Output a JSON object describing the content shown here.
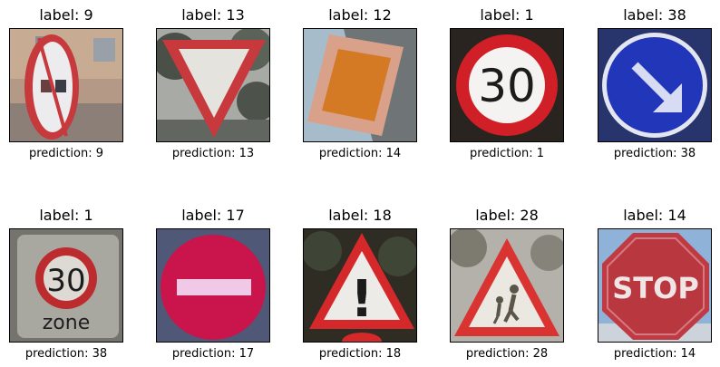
{
  "chart_data": {
    "type": "image-grid",
    "rows": 2,
    "cols": 5,
    "items": [
      {
        "label_text": "label: 9",
        "prediction_text": "prediction: 9",
        "label": 9,
        "prediction": 9,
        "icon": "no-overtaking-trucks-sign"
      },
      {
        "label_text": "label: 13",
        "prediction_text": "prediction: 13",
        "label": 13,
        "prediction": 13,
        "icon": "yield-sign"
      },
      {
        "label_text": "label: 12",
        "prediction_text": "prediction: 14",
        "label": 12,
        "prediction": 14,
        "icon": "priority-road-sign"
      },
      {
        "label_text": "label: 1",
        "prediction_text": "prediction: 1",
        "label": 1,
        "prediction": 1,
        "icon": "speed-limit-30-sign",
        "sign_text": "30"
      },
      {
        "label_text": "label: 38",
        "prediction_text": "prediction: 38",
        "label": 38,
        "prediction": 38,
        "icon": "keep-right-sign"
      },
      {
        "label_text": "label: 1",
        "prediction_text": "prediction: 38",
        "label": 1,
        "prediction": 38,
        "icon": "speed-limit-30-zone-sign",
        "sign_text": "30",
        "sub_text": "zone"
      },
      {
        "label_text": "label: 17",
        "prediction_text": "prediction: 17",
        "label": 17,
        "prediction": 17,
        "icon": "no-entry-sign"
      },
      {
        "label_text": "label: 18",
        "prediction_text": "prediction: 18",
        "label": 18,
        "prediction": 18,
        "icon": "general-caution-sign",
        "sign_text": "!"
      },
      {
        "label_text": "label: 28",
        "prediction_text": "prediction: 28",
        "label": 28,
        "prediction": 28,
        "icon": "children-crossing-sign"
      },
      {
        "label_text": "label: 14",
        "prediction_text": "prediction: 14",
        "label": 14,
        "prediction": 14,
        "icon": "stop-sign",
        "sign_text": "STOP"
      }
    ]
  }
}
